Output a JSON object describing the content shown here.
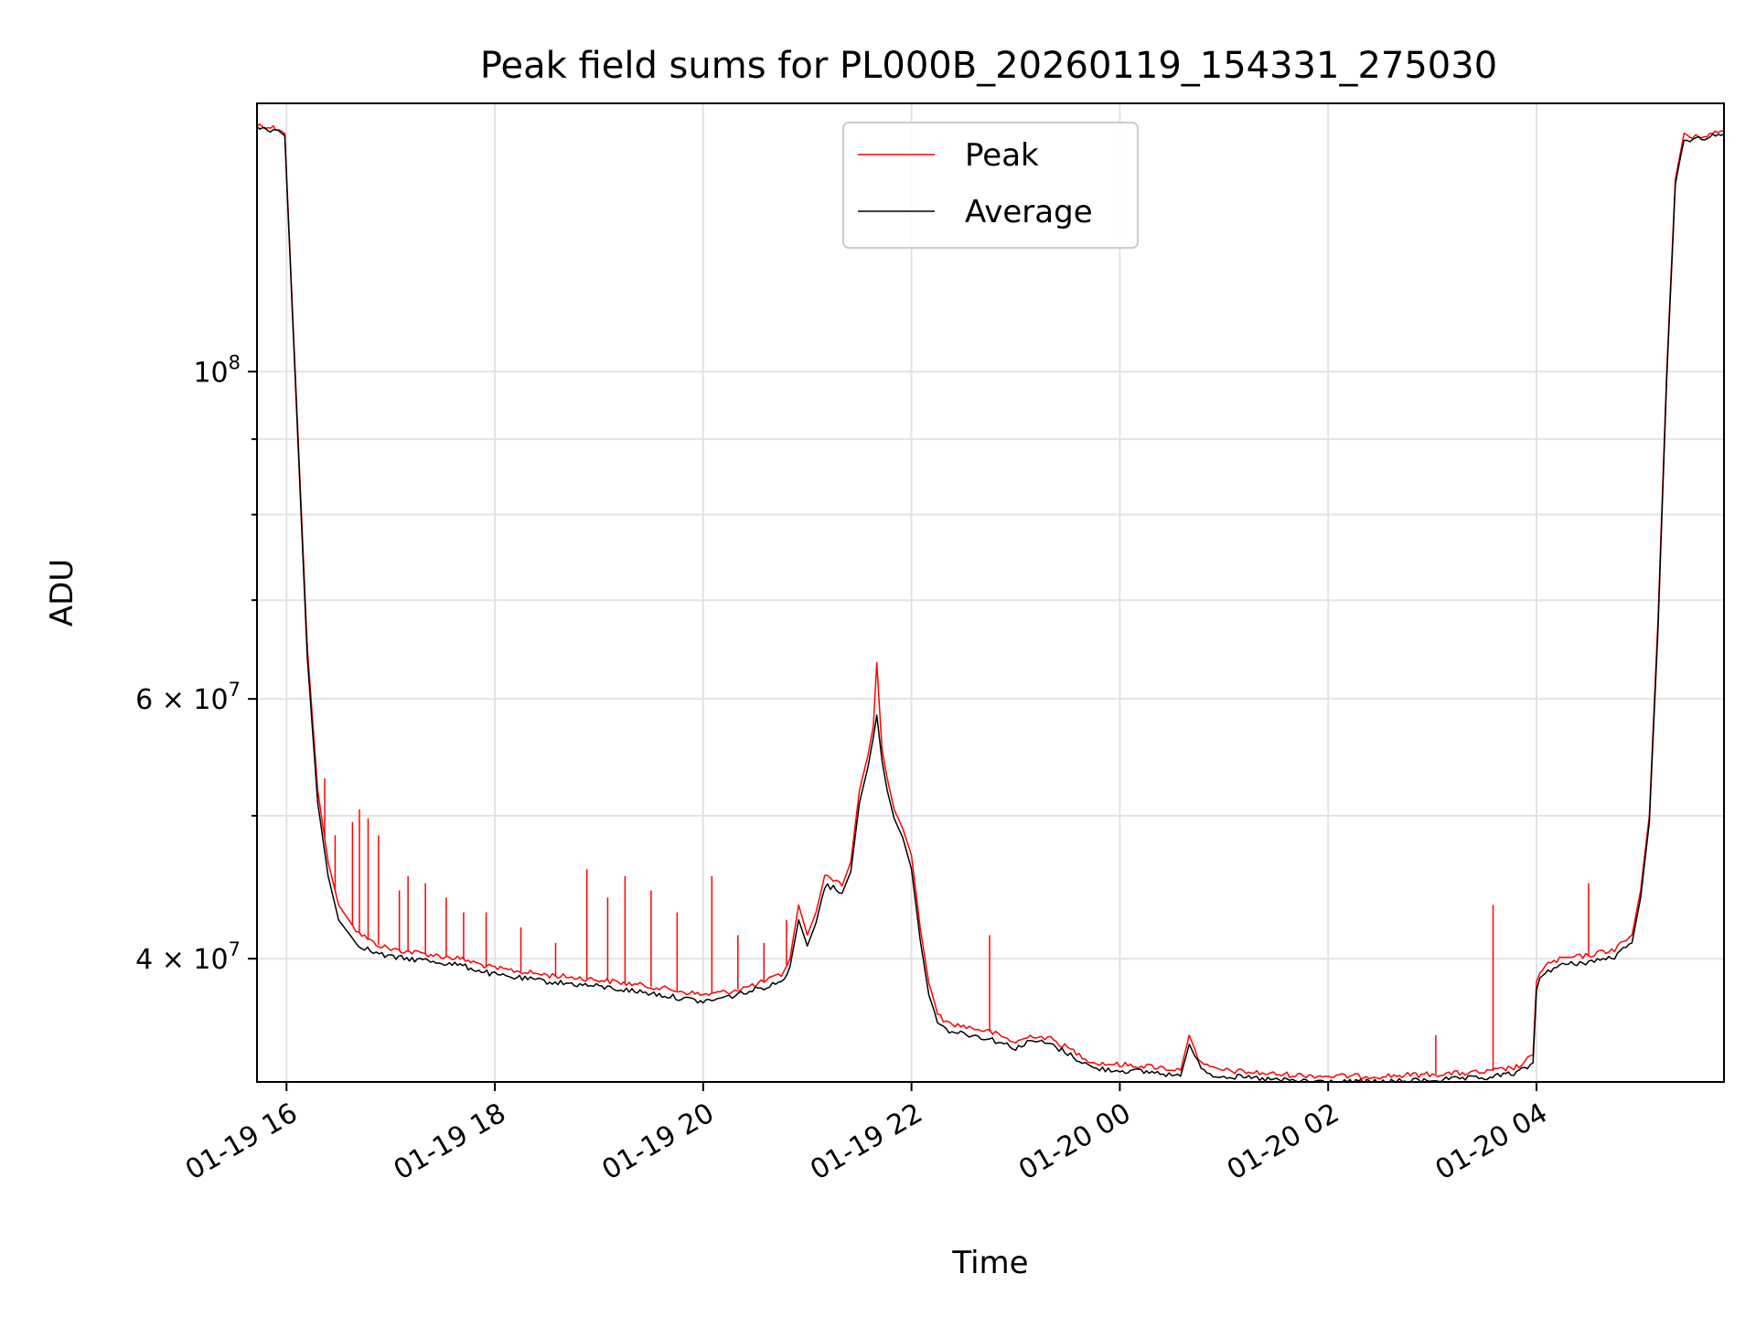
{
  "chart_data": {
    "type": "line",
    "title": "Peak field sums for PL000B_20260119_154331_275030",
    "xlabel": "Time",
    "ylabel": "ADU",
    "yscale": "log",
    "grid": true,
    "legend_position": "top-center",
    "x_range": [
      "2026-01-19 15:43",
      "2026-01-20 05:48"
    ],
    "y_range": [
      33000000,
      152000000
    ],
    "x_ticks": [
      {
        "t": "2026-01-19 16:00",
        "label": "01-19 16"
      },
      {
        "t": "2026-01-19 18:00",
        "label": "01-19 18"
      },
      {
        "t": "2026-01-19 20:00",
        "label": "01-19 20"
      },
      {
        "t": "2026-01-19 22:00",
        "label": "01-19 22"
      },
      {
        "t": "2026-01-20 00:00",
        "label": "01-20 00"
      },
      {
        "t": "2026-01-20 02:00",
        "label": "01-20 02"
      },
      {
        "t": "2026-01-20 04:00",
        "label": "01-20 04"
      }
    ],
    "y_major_ticks": [
      {
        "value": 40000000,
        "mantissa": "4",
        "exponent": "7"
      },
      {
        "value": 60000000,
        "mantissa": "6",
        "exponent": "7"
      },
      {
        "value": 100000000,
        "mantissa": "",
        "exponent": "8"
      }
    ],
    "y_minor_ticks": [
      50000000,
      70000000,
      80000000,
      90000000
    ],
    "series": [
      {
        "name": "Peak",
        "color": "#ff0000",
        "x": [
          "2026-01-19 15:43",
          "2026-01-19 15:57",
          "2026-01-19 15:59",
          "2026-01-19 16:05",
          "2026-01-19 16:12",
          "2026-01-19 16:18",
          "2026-01-19 16:24",
          "2026-01-19 16:30",
          "2026-01-19 16:40",
          "2026-01-19 16:50",
          "2026-01-19 17:00",
          "2026-01-19 17:20",
          "2026-01-19 17:40",
          "2026-01-19 18:00",
          "2026-01-19 18:30",
          "2026-01-19 19:00",
          "2026-01-19 19:30",
          "2026-01-19 20:00",
          "2026-01-19 20:15",
          "2026-01-19 20:30",
          "2026-01-19 20:45",
          "2026-01-19 20:50",
          "2026-01-19 20:55",
          "2026-01-19 21:00",
          "2026-01-19 21:05",
          "2026-01-19 21:10",
          "2026-01-19 21:15",
          "2026-01-19 21:20",
          "2026-01-19 21:25",
          "2026-01-19 21:30",
          "2026-01-19 21:35",
          "2026-01-19 21:38",
          "2026-01-19 21:40",
          "2026-01-19 21:43",
          "2026-01-19 21:46",
          "2026-01-19 21:50",
          "2026-01-19 21:55",
          "2026-01-19 22:00",
          "2026-01-19 22:05",
          "2026-01-19 22:10",
          "2026-01-19 22:15",
          "2026-01-19 22:20",
          "2026-01-19 22:30",
          "2026-01-19 22:45",
          "2026-01-19 23:00",
          "2026-01-19 23:10",
          "2026-01-19 23:20",
          "2026-01-19 23:30",
          "2026-01-19 23:45",
          "2026-01-20 00:00",
          "2026-01-20 00:20",
          "2026-01-20 00:35",
          "2026-01-20 00:40",
          "2026-01-20 00:45",
          "2026-01-20 00:52",
          "2026-01-20 01:00",
          "2026-01-20 01:30",
          "2026-01-20 02:00",
          "2026-01-20 02:30",
          "2026-01-20 03:00",
          "2026-01-20 03:30",
          "2026-01-20 03:50",
          "2026-01-20 03:58",
          "2026-01-20 04:00",
          "2026-01-20 04:02",
          "2026-01-20 04:05",
          "2026-01-20 04:15",
          "2026-01-20 04:30",
          "2026-01-20 04:45",
          "2026-01-20 04:55",
          "2026-01-20 05:00",
          "2026-01-20 05:05",
          "2026-01-20 05:10",
          "2026-01-20 05:15",
          "2026-01-20 05:20",
          "2026-01-20 05:25",
          "2026-01-20 05:30",
          "2026-01-20 05:35",
          "2026-01-20 05:48"
        ],
        "y": [
          147000000,
          146000000,
          145000000,
          100000000,
          65000000,
          52000000,
          46500000,
          43500000,
          41800000,
          41000000,
          40600000,
          40300000,
          40000000,
          39400000,
          39000000,
          38700000,
          38300000,
          37800000,
          38000000,
          38400000,
          39000000,
          40000000,
          43500000,
          41500000,
          43000000,
          45500000,
          45300000,
          44800000,
          46500000,
          52000000,
          55000000,
          57500000,
          63500000,
          55500000,
          53000000,
          50500000,
          49000000,
          47000000,
          42000000,
          38500000,
          36800000,
          36200000,
          36000000,
          35700000,
          35100000,
          35500000,
          35300000,
          34800000,
          34000000,
          33900000,
          33800000,
          33600000,
          35500000,
          34300000,
          33700000,
          33600000,
          33400000,
          33300000,
          33300000,
          33400000,
          33500000,
          33800000,
          34400000,
          38500000,
          39200000,
          39600000,
          40000000,
          40200000,
          40600000,
          41500000,
          44500000,
          50000000,
          68000000,
          100000000,
          135000000,
          145000000,
          144000000,
          144500000,
          145500000
        ]
      },
      {
        "name": "Average",
        "color": "#000000",
        "x": [
          "2026-01-19 15:43",
          "2026-01-19 15:57",
          "2026-01-19 15:59",
          "2026-01-19 16:05",
          "2026-01-19 16:12",
          "2026-01-19 16:18",
          "2026-01-19 16:24",
          "2026-01-19 16:30",
          "2026-01-19 16:40",
          "2026-01-19 16:50",
          "2026-01-19 17:00",
          "2026-01-19 17:20",
          "2026-01-19 17:40",
          "2026-01-19 18:00",
          "2026-01-19 18:30",
          "2026-01-19 19:00",
          "2026-01-19 19:30",
          "2026-01-19 20:00",
          "2026-01-19 20:15",
          "2026-01-19 20:30",
          "2026-01-19 20:45",
          "2026-01-19 20:50",
          "2026-01-19 20:55",
          "2026-01-19 21:00",
          "2026-01-19 21:05",
          "2026-01-19 21:10",
          "2026-01-19 21:15",
          "2026-01-19 21:20",
          "2026-01-19 21:25",
          "2026-01-19 21:30",
          "2026-01-19 21:35",
          "2026-01-19 21:38",
          "2026-01-19 21:40",
          "2026-01-19 21:43",
          "2026-01-19 21:46",
          "2026-01-19 21:50",
          "2026-01-19 21:55",
          "2026-01-19 22:00",
          "2026-01-19 22:05",
          "2026-01-19 22:10",
          "2026-01-19 22:15",
          "2026-01-19 22:20",
          "2026-01-19 22:30",
          "2026-01-19 22:45",
          "2026-01-19 23:00",
          "2026-01-19 23:10",
          "2026-01-19 23:20",
          "2026-01-19 23:30",
          "2026-01-19 23:45",
          "2026-01-20 00:00",
          "2026-01-20 00:20",
          "2026-01-20 00:35",
          "2026-01-20 00:40",
          "2026-01-20 00:45",
          "2026-01-20 00:52",
          "2026-01-20 01:00",
          "2026-01-20 01:30",
          "2026-01-20 02:00",
          "2026-01-20 02:30",
          "2026-01-20 03:00",
          "2026-01-20 03:30",
          "2026-01-20 03:50",
          "2026-01-20 03:58",
          "2026-01-20 04:00",
          "2026-01-20 04:02",
          "2026-01-20 04:05",
          "2026-01-20 04:15",
          "2026-01-20 04:30",
          "2026-01-20 04:45",
          "2026-01-20 04:55",
          "2026-01-20 05:00",
          "2026-01-20 05:05",
          "2026-01-20 05:10",
          "2026-01-20 05:15",
          "2026-01-20 05:20",
          "2026-01-20 05:25",
          "2026-01-20 05:30",
          "2026-01-20 05:35",
          "2026-01-20 05:48"
        ],
        "y": [
          146500000,
          145500000,
          144500000,
          99000000,
          64000000,
          51000000,
          45500000,
          42500000,
          41000000,
          40400000,
          40100000,
          39900000,
          39600000,
          39000000,
          38600000,
          38300000,
          37900000,
          37400000,
          37700000,
          38100000,
          38600000,
          39500000,
          42500000,
          40800000,
          42300000,
          44800000,
          44700000,
          44300000,
          45800000,
          51000000,
          54000000,
          56500000,
          58500000,
          54500000,
          52000000,
          49800000,
          48300000,
          46000000,
          41200000,
          37800000,
          36300000,
          35800000,
          35600000,
          35300000,
          34800000,
          35200000,
          35000000,
          34500000,
          33700000,
          33600000,
          33500000,
          33300000,
          35000000,
          34000000,
          33400000,
          33300000,
          33100000,
          33000000,
          33000000,
          33100000,
          33200000,
          33500000,
          34000000,
          38000000,
          38800000,
          39200000,
          39600000,
          39800000,
          40100000,
          41000000,
          44000000,
          49500000,
          67000000,
          99000000,
          134000000,
          144000000,
          143500000,
          144000000,
          145000000
        ]
      }
    ],
    "spikes": [
      {
        "t": "2026-01-19 16:12",
        "y": 65500000
      },
      {
        "t": "2026-01-19 16:22",
        "y": 53000000
      },
      {
        "t": "2026-01-19 16:28",
        "y": 48500000
      },
      {
        "t": "2026-01-19 16:38",
        "y": 49500000
      },
      {
        "t": "2026-01-19 16:42",
        "y": 50500000
      },
      {
        "t": "2026-01-19 16:47",
        "y": 49800000
      },
      {
        "t": "2026-01-19 16:53",
        "y": 48500000
      },
      {
        "t": "2026-01-19 17:05",
        "y": 44500000
      },
      {
        "t": "2026-01-19 17:10",
        "y": 45500000
      },
      {
        "t": "2026-01-19 17:20",
        "y": 45000000
      },
      {
        "t": "2026-01-19 17:32",
        "y": 44000000
      },
      {
        "t": "2026-01-19 17:42",
        "y": 43000000
      },
      {
        "t": "2026-01-19 17:55",
        "y": 43000000
      },
      {
        "t": "2026-01-19 18:15",
        "y": 42000000
      },
      {
        "t": "2026-01-19 18:35",
        "y": 41000000
      },
      {
        "t": "2026-01-19 18:53",
        "y": 46000000
      },
      {
        "t": "2026-01-19 19:05",
        "y": 44000000
      },
      {
        "t": "2026-01-19 19:15",
        "y": 45500000
      },
      {
        "t": "2026-01-19 19:30",
        "y": 44500000
      },
      {
        "t": "2026-01-19 19:45",
        "y": 43000000
      },
      {
        "t": "2026-01-19 20:05",
        "y": 45500000
      },
      {
        "t": "2026-01-19 20:20",
        "y": 41500000
      },
      {
        "t": "2026-01-19 20:35",
        "y": 41000000
      },
      {
        "t": "2026-01-19 20:48",
        "y": 42500000
      },
      {
        "t": "2026-01-19 22:45",
        "y": 41500000
      },
      {
        "t": "2026-01-20 03:02",
        "y": 35500000
      },
      {
        "t": "2026-01-20 03:35",
        "y": 43500000
      },
      {
        "t": "2026-01-20 04:30",
        "y": 45000000
      }
    ]
  }
}
